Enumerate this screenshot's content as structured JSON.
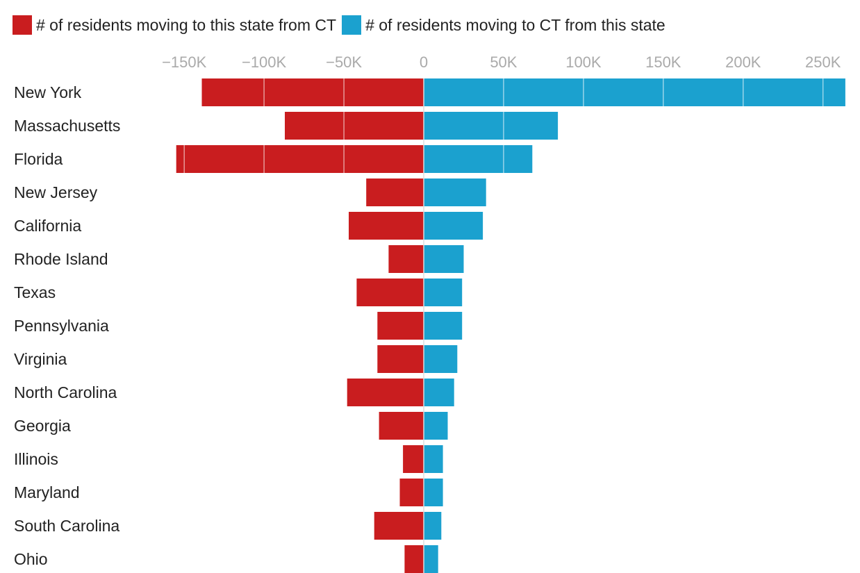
{
  "chart_data": {
    "type": "bar",
    "orientation": "horizontal-diverging",
    "categories": [
      "New York",
      "Massachusetts",
      "Florida",
      "New Jersey",
      "California",
      "Rhode Island",
      "Texas",
      "Pennsylvania",
      "Virginia",
      "North Carolina",
      "Georgia",
      "Illinois",
      "Maryland",
      "South Carolina",
      "Ohio"
    ],
    "series": [
      {
        "name": "# of residents moving to this state from CT",
        "color": "#c91d1f",
        "values": [
          -139000,
          -87000,
          -155000,
          -36000,
          -47000,
          -22000,
          -42000,
          -29000,
          -29000,
          -48000,
          -28000,
          -13000,
          -15000,
          -31000,
          -12000
        ]
      },
      {
        "name": "# of residents moving to CT from this state",
        "color": "#1ba1cf",
        "values": [
          264000,
          84000,
          68000,
          39000,
          37000,
          25000,
          24000,
          24000,
          21000,
          19000,
          15000,
          12000,
          12000,
          11000,
          9000
        ]
      }
    ],
    "xlim": [
      -165000,
      264000
    ],
    "xticks": [
      -150000,
      -100000,
      -50000,
      0,
      50000,
      100000,
      150000,
      200000,
      250000
    ],
    "xtick_labels": [
      "−150K",
      "−100K",
      "−50K",
      "0",
      "50K",
      "100K",
      "150K",
      "200K",
      "250K"
    ],
    "legend_position": "top-left",
    "gridlines": "vertical, white, drawn over bars"
  }
}
